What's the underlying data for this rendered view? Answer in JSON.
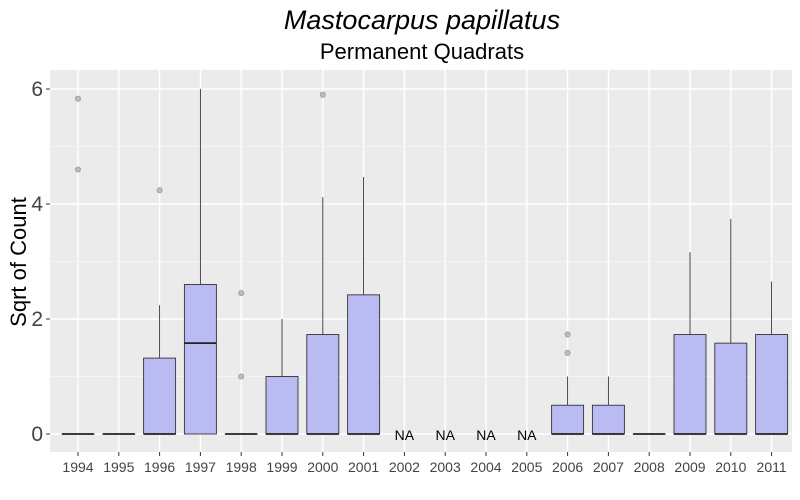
{
  "chart_data": {
    "type": "box",
    "title": "Mastocarpus papillatus",
    "subtitle": "Permanent Quadrats",
    "xlabel": "",
    "ylabel": "Sqrt of Count",
    "ylim": [
      -0.3,
      6.25
    ],
    "yticks": [
      0,
      2,
      4,
      6
    ],
    "grid": true,
    "fill_color": "#bbbbf3",
    "panel_color": "#ebebeb",
    "na_label": "NA",
    "categories": [
      "1994",
      "1995",
      "1996",
      "1997",
      "1998",
      "1999",
      "2000",
      "2001",
      "2002",
      "2003",
      "2004",
      "2005",
      "2006",
      "2007",
      "2008",
      "2009",
      "2010",
      "2011"
    ],
    "boxes": [
      {
        "year": "1994",
        "min": 0,
        "q1": 0,
        "median": 0,
        "q3": 0,
        "max": 0,
        "outliers": [
          4.6,
          5.83
        ]
      },
      {
        "year": "1995",
        "min": 0,
        "q1": 0,
        "median": 0,
        "q3": 0,
        "max": 0,
        "outliers": []
      },
      {
        "year": "1996",
        "min": 0,
        "q1": 0,
        "median": 0,
        "q3": 1.32,
        "max": 2.24,
        "outliers": [
          4.24
        ]
      },
      {
        "year": "1997",
        "min": 0,
        "q1": 0,
        "median": 1.58,
        "q3": 2.6,
        "max": 6.0,
        "outliers": []
      },
      {
        "year": "1998",
        "min": 0,
        "q1": 0,
        "median": 0,
        "q3": 0,
        "max": 0,
        "outliers": [
          1.0,
          2.45
        ]
      },
      {
        "year": "1999",
        "min": 0,
        "q1": 0,
        "median": 0,
        "q3": 1.0,
        "max": 2.0,
        "outliers": []
      },
      {
        "year": "2000",
        "min": 0,
        "q1": 0,
        "median": 0,
        "q3": 1.73,
        "max": 4.12,
        "outliers": [
          5.9
        ]
      },
      {
        "year": "2001",
        "min": 0,
        "q1": 0,
        "median": 0,
        "q3": 2.42,
        "max": 4.47,
        "outliers": []
      },
      {
        "year": "2002",
        "na": true
      },
      {
        "year": "2003",
        "na": true
      },
      {
        "year": "2004",
        "na": true
      },
      {
        "year": "2005",
        "na": true
      },
      {
        "year": "2006",
        "min": 0,
        "q1": 0,
        "median": 0,
        "q3": 0.5,
        "max": 1.0,
        "outliers": [
          1.41,
          1.73
        ]
      },
      {
        "year": "2007",
        "min": 0,
        "q1": 0,
        "median": 0,
        "q3": 0.5,
        "max": 1.0,
        "outliers": []
      },
      {
        "year": "2008",
        "min": 0,
        "q1": 0,
        "median": 0,
        "q3": 0,
        "max": 0,
        "outliers": []
      },
      {
        "year": "2009",
        "min": 0,
        "q1": 0,
        "median": 0,
        "q3": 1.73,
        "max": 3.16,
        "outliers": []
      },
      {
        "year": "2010",
        "min": 0,
        "q1": 0,
        "median": 0,
        "q3": 1.58,
        "max": 3.74,
        "outliers": []
      },
      {
        "year": "2011",
        "min": 0,
        "q1": 0,
        "median": 0,
        "q3": 1.73,
        "max": 2.65,
        "outliers": []
      }
    ]
  }
}
